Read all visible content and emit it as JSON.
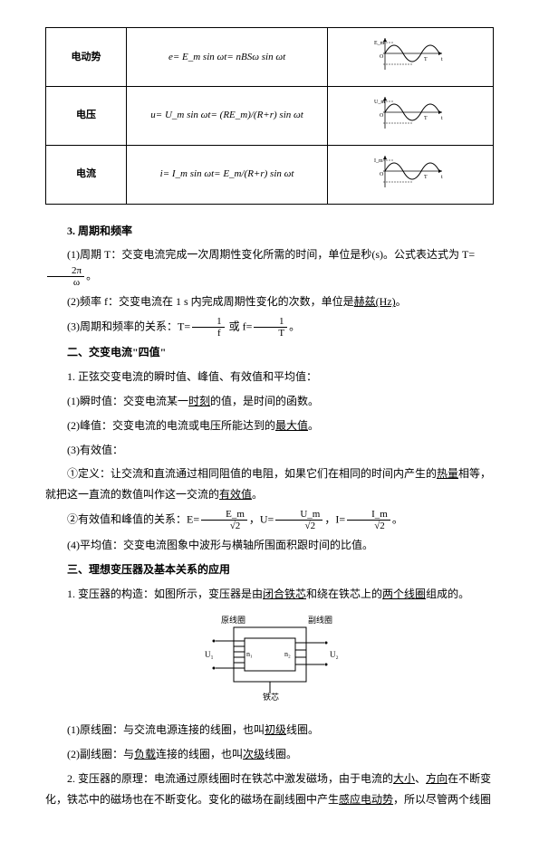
{
  "table": {
    "rows": [
      {
        "label": "电动势",
        "formula": "e= E_m sin ωt= nBSω sin ωt",
        "axis_top": "E_m",
        "axis_x": "t"
      },
      {
        "label": "电压",
        "formula": "u= U_m sin ωt= (RE_m)/(R+r) sin ωt",
        "axis_top": "U_m",
        "axis_x": "t"
      },
      {
        "label": "电流",
        "formula": "i= I_m sin ωt= E_m/(R+r) sin ωt",
        "axis_top": "I_m",
        "axis_x": "t"
      }
    ],
    "sine_color": "#000000",
    "axis_color": "#000000"
  },
  "content": {
    "l1_head": "3. 周期和频率",
    "l2a": "(1)周期 T：交变电流完成一次周期性变化所需的时间，单位是秒(s)。公式表达式为 T=",
    "l2_frac_num": "2π",
    "l2_frac_den": "ω",
    "l2b": "。",
    "l3": "(2)频率 f：交变电流在 1 s 内完成周期性变化的次数，单位是",
    "l3_u": "赫兹(Hz)",
    "l3b": "。",
    "l4a": "(3)周期和频率的关系：T=",
    "l4_f1n": "1",
    "l4_f1d": "f",
    "l4b": " 或 f=",
    "l4_f2n": "1",
    "l4_f2d": "T",
    "l4c": "。",
    "sec2": "二、交变电流\"四值\"",
    "l5": "1. 正弦交变电流的瞬时值、峰值、有效值和平均值：",
    "l6a": "(1)瞬时值：交变电流某一",
    "l6_u": "时刻",
    "l6b": "的值，是时间的函数。",
    "l7a": "(2)峰值：交变电流的电流或电压所能达到的",
    "l7_u": "最大值",
    "l7b": "。",
    "l8": "(3)有效值：",
    "l9a": "①定义：让交流和直流通过相同阻值的电阻，如果它们在相同的时间内产生的",
    "l9_u1": "热量",
    "l9b": "相等，就把这一直流的数值叫作这一交流的",
    "l9_u2": "有效值",
    "l9c": "。",
    "l10a": "②有效值和峰值的关系：E=",
    "l10_f1n": "E_m",
    "l10_f1d": "√2",
    "l10b": "，U=",
    "l10_f2n": "U_m",
    "l10_f2d": "√2",
    "l10c": "，I=",
    "l10_f3n": "I_m",
    "l10_f3d": "√2",
    "l10d": "。",
    "l11": "(4)平均值：交变电流图象中波形与横轴所围面积跟时间的比值。",
    "sec3": "三、理想变压器及基本关系的应用",
    "l12a": "1. 变压器的构造：如图所示，变压器是由",
    "l12_u1": "闭合铁芯",
    "l12b": "和绕在铁芯上的",
    "l12_u2": "两个线圈",
    "l12c": "组成的。",
    "diagram": {
      "left_label": "原线圈",
      "right_label": "副线圈",
      "bottom_label": "铁芯",
      "n1": "n₁",
      "n2": "n₂",
      "u1": "U₁",
      "u2": "U₂"
    },
    "l13a": "(1)原线圈：与交流电源连接的线圈，也叫",
    "l13_u": "初级",
    "l13b": "线圈。",
    "l14a": "(2)副线圈：与",
    "l14_u1": "负载",
    "l14b": "连接的线圈，也叫",
    "l14_u2": "次级",
    "l14c": "线圈。",
    "l15a": "2. 变压器的原理：电流通过原线圈时在铁芯中激发磁场，由于电流的",
    "l15_u1": "大小",
    "l15b": "、",
    "l15_u2": "方向",
    "l15c": "在不断变化，铁芯中的磁场也在不断变化。变化的磁场在副线圈中产生",
    "l15_u3": "感应电动势",
    "l15d": "，所以尽管两个线圈"
  }
}
